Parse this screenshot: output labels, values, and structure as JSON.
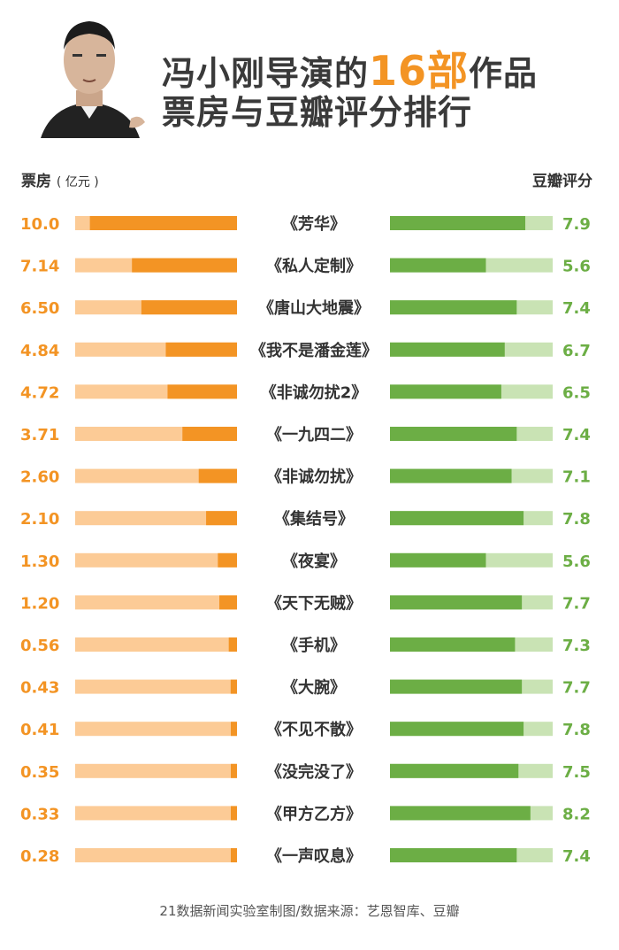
{
  "title": {
    "line1_prefix": "冯小刚导演的",
    "line1_highlight": "16部",
    "line1_suffix": "作品",
    "line2": "票房与豆瓣评分排行"
  },
  "headers": {
    "box_office": "票房",
    "box_office_unit": "( 亿元 )",
    "rating": "豆瓣评分"
  },
  "footer": "21数据新闻实验室制图/数据来源：艺恩智库、豆瓣",
  "colors": {
    "box_office_bar": "#f39424",
    "box_office_track": "#fccb96",
    "box_office_text": "#f39424",
    "rating_bar": "#6cae45",
    "rating_track": "#c9e3b4",
    "rating_text": "#6cae45"
  },
  "chart_data": {
    "type": "bar",
    "title": "冯小刚导演的16部作品票房与豆瓣评分排行",
    "categories": [
      "《芳华》",
      "《私人定制》",
      "《唐山大地震》",
      "《我不是潘金莲》",
      "《非诚勿扰2》",
      "《一九四二》",
      "《非诚勿扰》",
      "《集结号》",
      "《夜宴》",
      "《天下无贼》",
      "《手机》",
      "《大腕》",
      "《不见不散》",
      "《没完没了》",
      "《甲方乙方》",
      "《一声叹息》"
    ],
    "series": [
      {
        "name": "票房 (亿元)",
        "values": [
          "10.0",
          "7.14",
          "6.50",
          "4.84",
          "4.72",
          "3.71",
          "2.60",
          "2.10",
          "1.30",
          "1.20",
          "0.56",
          "0.43",
          "0.41",
          "0.35",
          "0.33",
          "0.28"
        ],
        "max": 11
      },
      {
        "name": "豆瓣评分",
        "values": [
          "7.9",
          "5.6",
          "7.4",
          "6.7",
          "6.5",
          "7.4",
          "7.1",
          "7.8",
          "5.6",
          "7.7",
          "7.3",
          "7.7",
          "7.8",
          "7.5",
          "8.2",
          "7.4"
        ],
        "max": 9.5
      }
    ]
  }
}
